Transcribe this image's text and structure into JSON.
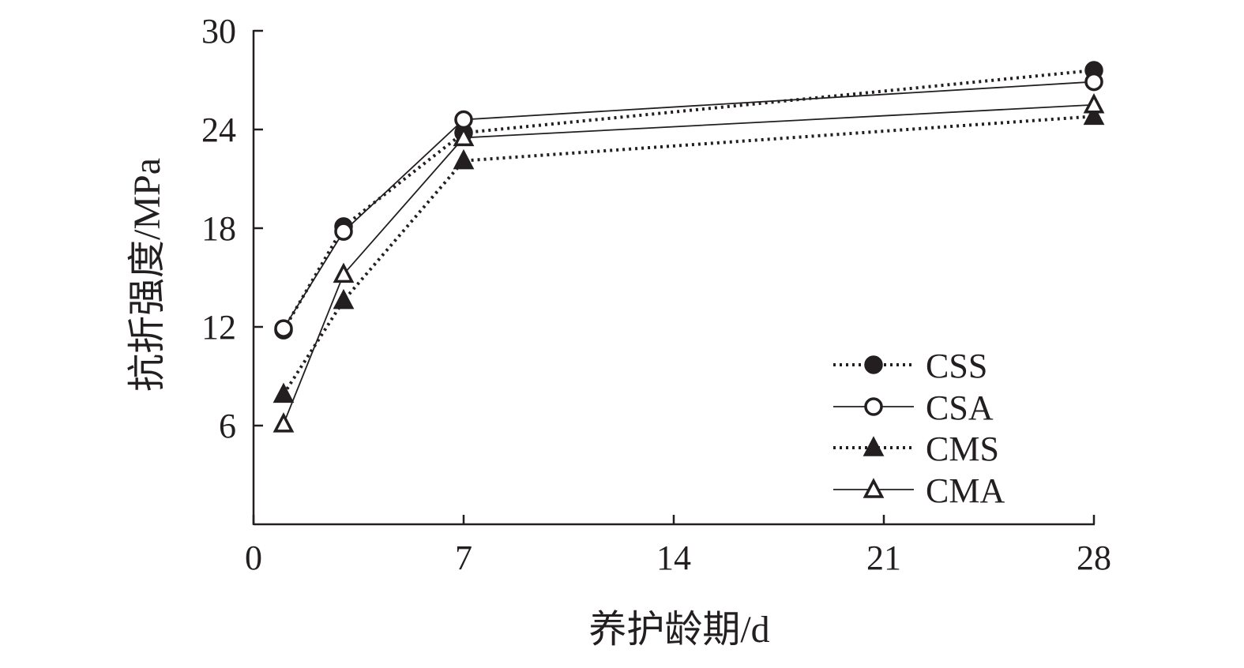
{
  "chart_data": {
    "type": "line",
    "title": "",
    "xlabel": "养护龄期/d",
    "ylabel": "抗折强度/MPa",
    "xlim": [
      0,
      28
    ],
    "ylim": [
      0,
      30
    ],
    "xticks": [
      0,
      7,
      14,
      21,
      28
    ],
    "yticks": [
      6,
      12,
      18,
      24,
      30
    ],
    "grid": false,
    "legend_position": "bottom-right",
    "x": [
      1,
      3,
      7,
      28
    ],
    "series": [
      {
        "name": "CSS",
        "values": [
          11.8,
          18.1,
          23.8,
          27.6
        ],
        "line_style": "dotted",
        "marker": "circle",
        "marker_fill": "filled"
      },
      {
        "name": "CSA",
        "values": [
          11.9,
          17.8,
          24.6,
          26.9
        ],
        "line_style": "solid",
        "marker": "circle",
        "marker_fill": "open"
      },
      {
        "name": "CMS",
        "values": [
          7.9,
          13.6,
          22.1,
          24.8
        ],
        "line_style": "dotted",
        "marker": "triangle",
        "marker_fill": "filled"
      },
      {
        "name": "CMA",
        "values": [
          6.1,
          15.2,
          23.5,
          25.5
        ],
        "line_style": "solid",
        "marker": "triangle",
        "marker_fill": "open"
      }
    ],
    "colors": {
      "ink": "#231f20",
      "background": "#ffffff"
    }
  }
}
